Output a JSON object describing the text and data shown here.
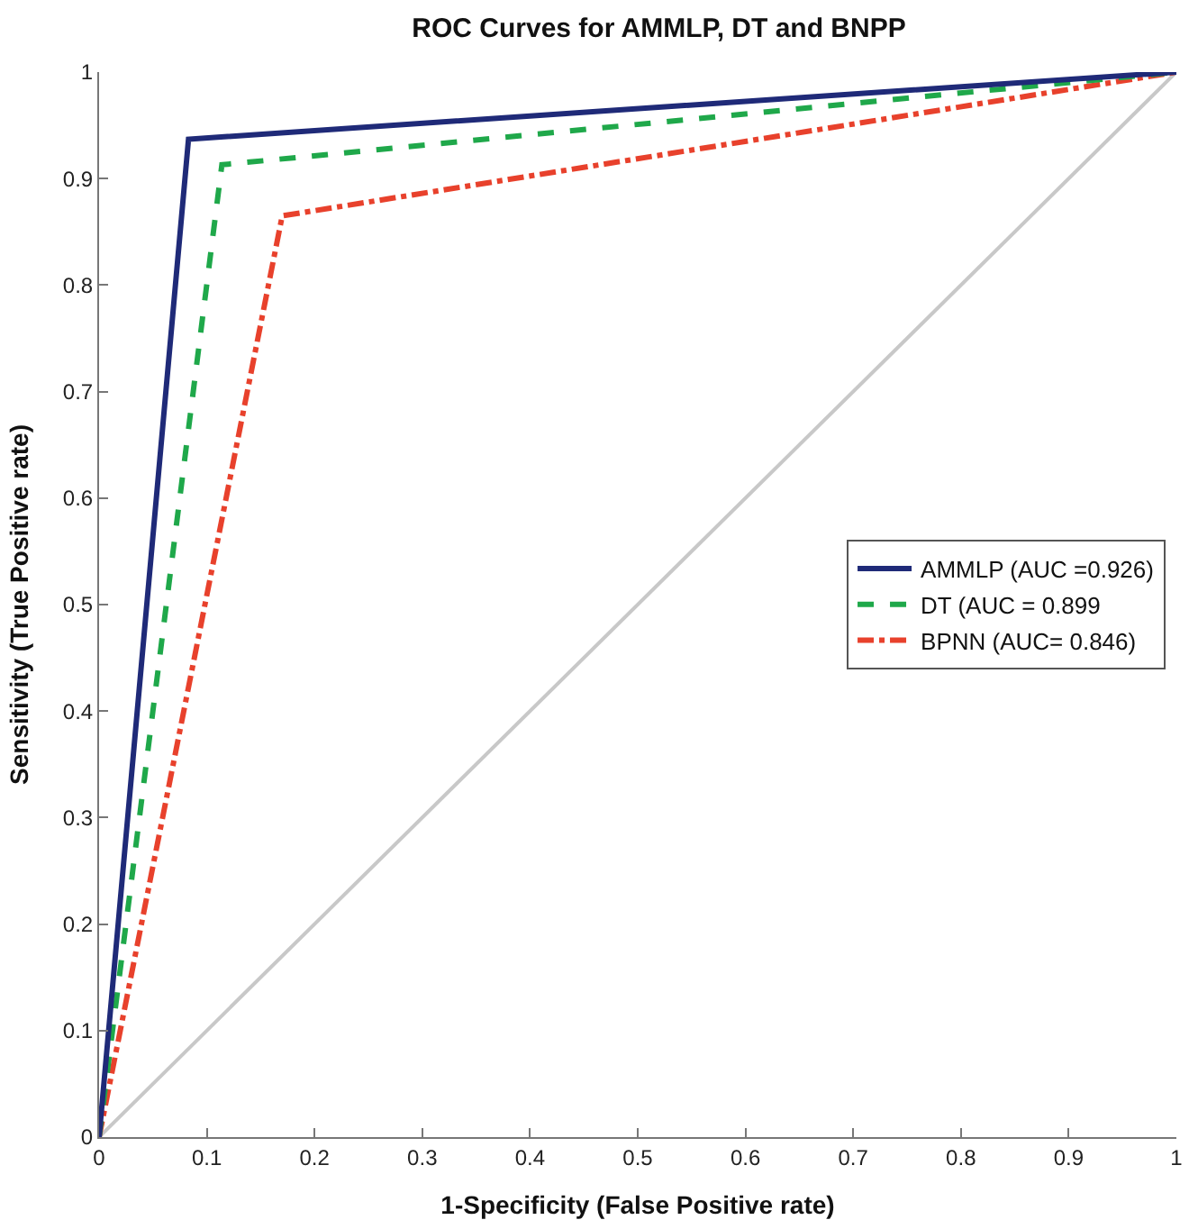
{
  "chart_data": {
    "type": "line",
    "title": "ROC Curves for AMMLP, DT and BNPP",
    "xlabel": "1-Specificity (False Positive rate)",
    "ylabel": "Sensitivity (True Positive rate)",
    "series": [
      {
        "name": "AMMLP (AUC =0.926)",
        "color": "#1f2a78",
        "x": [
          0,
          0.083,
          1
        ],
        "values": [
          0,
          0.937,
          1
        ],
        "line_style": "solid"
      },
      {
        "name": "DT (AUC = 0.899",
        "color": "#1fa84a",
        "x": [
          0,
          0.114,
          1
        ],
        "values": [
          0,
          0.913,
          1
        ],
        "line_style": "dashed"
      },
      {
        "name": "BPNN (AUC= 0.846)",
        "color": "#e8412c",
        "x": [
          0,
          0.17,
          1
        ],
        "values": [
          0,
          0.865,
          1
        ],
        "line_style": "dashdot"
      },
      {
        "color": "#c8c8c8",
        "x": [
          0,
          1
        ],
        "values": [
          0,
          1
        ],
        "line_style": "solid"
      }
    ],
    "xlim": [
      0,
      1
    ],
    "ylim": [
      0,
      1
    ],
    "xticks": [
      0,
      0.1,
      0.2,
      0.3,
      0.4,
      0.5,
      0.6,
      0.7,
      0.8,
      0.9,
      1
    ],
    "yticks": [
      0,
      0.1,
      0.2,
      0.3,
      0.4,
      0.5,
      0.6,
      0.7,
      0.8,
      0.9,
      1
    ],
    "legend": "right",
    "marker": "none"
  }
}
